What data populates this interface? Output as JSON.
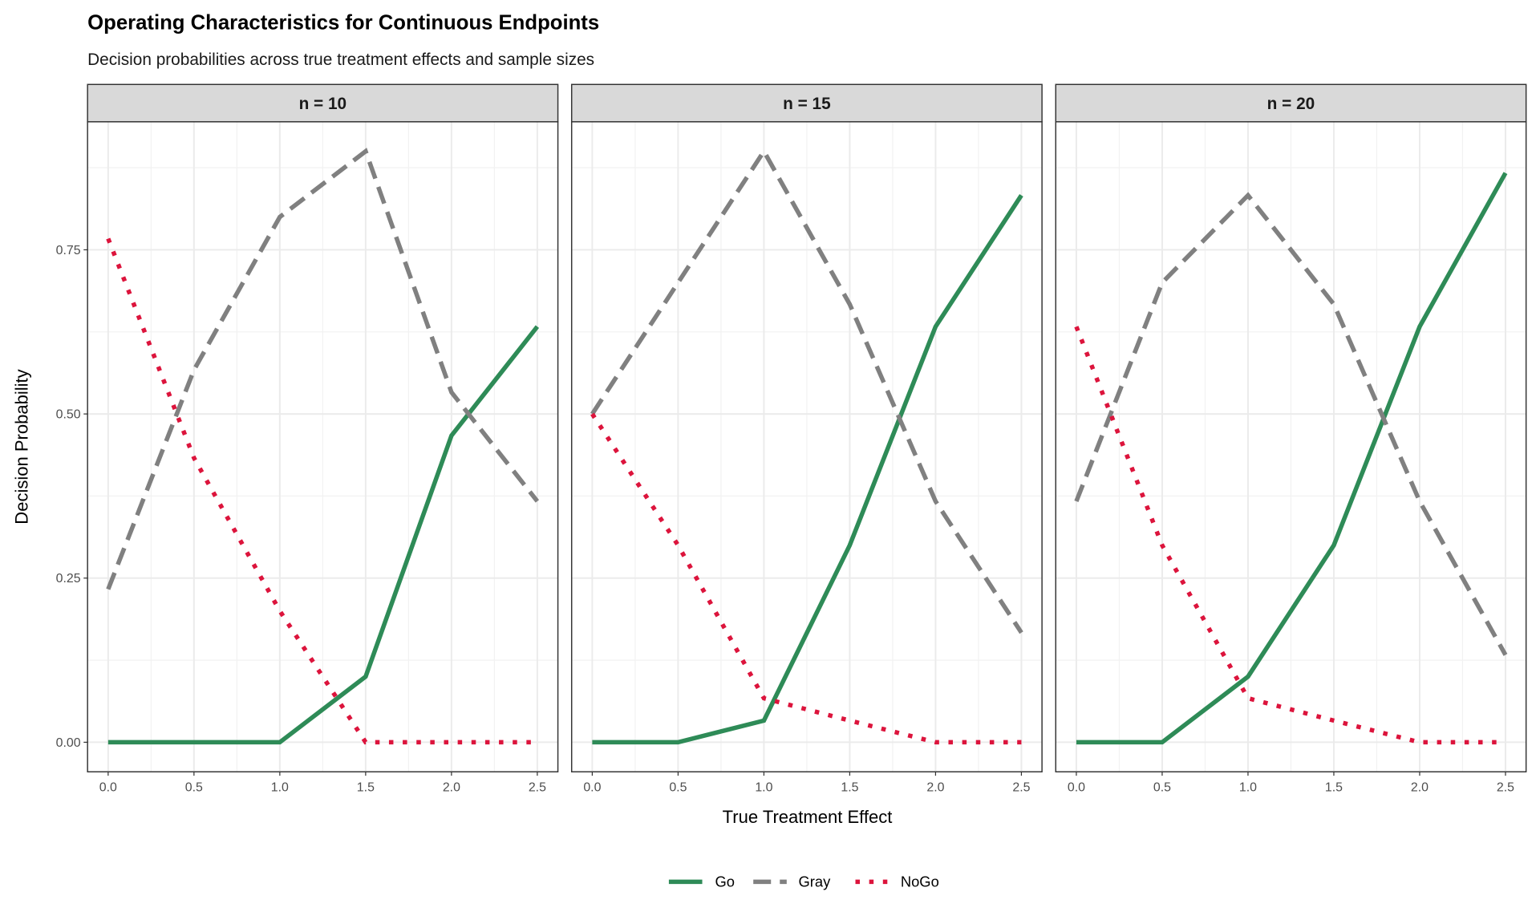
{
  "chart_data": {
    "type": "line",
    "title": "Operating Characteristics for Continuous Endpoints",
    "subtitle": "Decision probabilities across true treatment effects and sample sizes",
    "xlabel": "True Treatment Effect",
    "ylabel": "Decision Probability",
    "x": [
      0,
      0.5,
      1.0,
      1.5,
      2.0,
      2.5
    ],
    "x_ticks": [
      "0.0",
      "0.5",
      "1.0",
      "1.5",
      "2.0",
      "2.5"
    ],
    "y_ticks": [
      "0.00",
      "0.25",
      "0.50",
      "0.75"
    ],
    "y_tick_values": [
      0,
      0.25,
      0.5,
      0.75
    ],
    "xlim": [
      -0.12,
      2.62
    ],
    "ylim": [
      -0.045,
      0.945
    ],
    "grid": true,
    "legend_position": "bottom",
    "legend": [
      {
        "name": "Go",
        "color": "#2E8B57",
        "style": "solid"
      },
      {
        "name": "Gray",
        "color": "#808080",
        "style": "dashed"
      },
      {
        "name": "NoGo",
        "color": "#DC143C",
        "style": "dotted"
      }
    ],
    "panels": [
      {
        "label": "n = 10",
        "series": {
          "Go": [
            0,
            0,
            0,
            0.1,
            0.467,
            0.633
          ],
          "Gray": [
            0.233,
            0.567,
            0.8,
            0.9,
            0.533,
            0.367
          ],
          "NoGo": [
            0.767,
            0.433,
            0.2,
            0,
            0,
            0
          ]
        }
      },
      {
        "label": "n = 15",
        "series": {
          "Go": [
            0,
            0,
            0.033,
            0.3,
            0.633,
            0.833
          ],
          "Gray": [
            0.5,
            0.7,
            0.9,
            0.667,
            0.367,
            0.167
          ],
          "NoGo": [
            0.5,
            0.3,
            0.067,
            0.033,
            0,
            0
          ]
        }
      },
      {
        "label": "n = 20",
        "series": {
          "Go": [
            0,
            0,
            0.1,
            0.3,
            0.633,
            0.867
          ],
          "Gray": [
            0.367,
            0.7,
            0.833,
            0.667,
            0.367,
            0.133
          ],
          "NoGo": [
            0.633,
            0.3,
            0.067,
            0.033,
            0,
            0
          ]
        }
      }
    ]
  }
}
